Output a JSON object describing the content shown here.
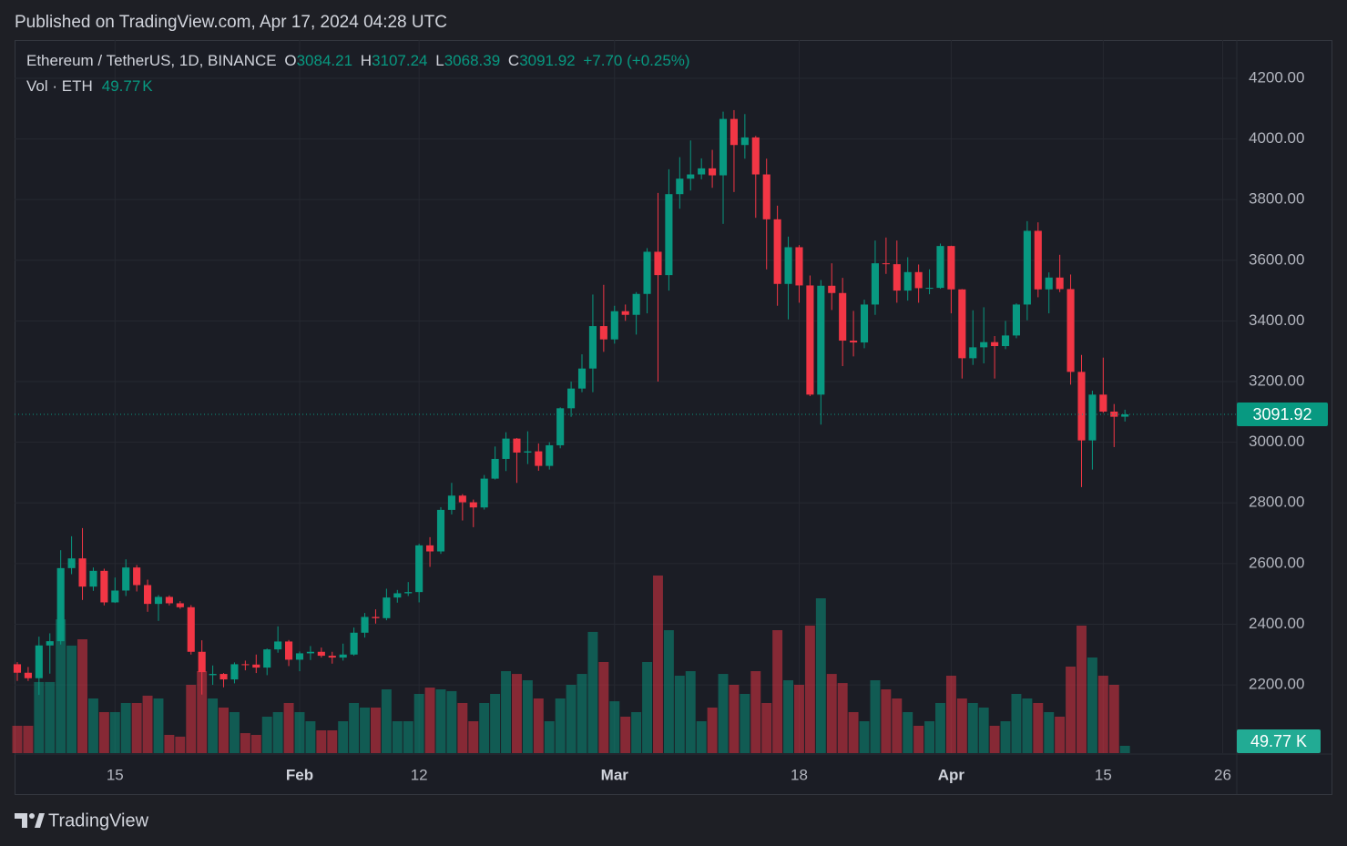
{
  "header": {
    "published": "Published on TradingView.com, Apr 17, 2024 04:28 UTC",
    "brand": "TradingView"
  },
  "chart_data": {
    "type": "candlestick",
    "title": "Ethereum / TetherUS, 1D, BINANCE",
    "ohlc_letters": [
      "O",
      "H",
      "L",
      "C"
    ],
    "change_label": "+7.70 (+0.25%)",
    "volume_title": "Vol · ETH",
    "volume_unit": "K",
    "up_color": "#089981",
    "down_color": "#f23645",
    "open": [
      2268,
      2240,
      2222,
      2330,
      2344,
      2585,
      2617,
      2524,
      2576,
      2472,
      2511,
      2587,
      2529,
      2467,
      2490,
      2469,
      2456,
      2309,
      2232,
      2236,
      2218,
      2268,
      2267,
      2257,
      2317,
      2343,
      2283,
      2304,
      2309,
      2296,
      2290,
      2300,
      2372,
      2424,
      2420,
      2488,
      2502,
      2506,
      2660,
      2640,
      2777,
      2824,
      2802,
      2785,
      2880,
      2945,
      3012,
      2966,
      2970,
      2922,
      2990,
      3112,
      3177,
      3243,
      3383,
      3339,
      3432,
      3420,
      3489,
      3628,
      3551,
      3818,
      3869,
      3883,
      3903,
      3880,
      4066,
      3980,
      4005,
      3883,
      3735,
      3522,
      3643,
      3517,
      3157,
      3516,
      3492,
      3335,
      3329,
      3454,
      3590,
      3587,
      3500,
      3561,
      3508,
      3509,
      3647,
      3504,
      3277,
      3313,
      3330,
      3317,
      3352,
      3454,
      3697,
      3504,
      3543,
      3505,
      3232,
      3006,
      3157,
      3101,
      3084.21
    ],
    "high": [
      2275,
      2259,
      2359,
      2370,
      2644,
      2690,
      2717,
      2587,
      2583,
      2554,
      2614,
      2595,
      2547,
      2496,
      2495,
      2476,
      2463,
      2347,
      2264,
      2239,
      2274,
      2280,
      2300,
      2320,
      2393,
      2348,
      2310,
      2328,
      2323,
      2309,
      2336,
      2389,
      2437,
      2449,
      2517,
      2513,
      2539,
      2665,
      2687,
      2786,
      2866,
      2829,
      2811,
      2892,
      2986,
      3033,
      3014,
      3036,
      2996,
      3000,
      3115,
      3200,
      3290,
      3487,
      3519,
      3450,
      3454,
      3495,
      3640,
      3822,
      3900,
      3940,
      3995,
      3936,
      3964,
      4090,
      4095,
      4082,
      4010,
      3935,
      3780,
      3678,
      3650,
      3550,
      3535,
      3590,
      3542,
      3433,
      3470,
      3665,
      3675,
      3665,
      3610,
      3586,
      3570,
      3655,
      3648,
      3505,
      3435,
      3445,
      3350,
      3400,
      3458,
      3729,
      3725,
      3560,
      3618,
      3553,
      3288,
      3170,
      3279,
      3126,
      3107.24
    ],
    "low": [
      2213,
      2213,
      2167,
      2237,
      2333,
      2565,
      2480,
      2510,
      2462,
      2470,
      2493,
      2508,
      2441,
      2411,
      2462,
      2451,
      2300,
      2168,
      2200,
      2192,
      2205,
      2248,
      2239,
      2232,
      2306,
      2262,
      2245,
      2282,
      2290,
      2270,
      2280,
      2296,
      2356,
      2402,
      2413,
      2471,
      2493,
      2472,
      2589,
      2632,
      2762,
      2742,
      2720,
      2778,
      2877,
      2905,
      2866,
      2928,
      2906,
      2910,
      2980,
      3084,
      3165,
      3165,
      3298,
      3325,
      3400,
      3355,
      3425,
      3200,
      3500,
      3770,
      3830,
      3867,
      3839,
      3720,
      3825,
      3935,
      3740,
      3570,
      3450,
      3405,
      3460,
      3152,
      3058,
      3436,
      3251,
      3283,
      3310,
      3420,
      3555,
      3460,
      3467,
      3460,
      3488,
      3506,
      3425,
      3210,
      3255,
      3260,
      3210,
      3307,
      3343,
      3402,
      3478,
      3425,
      3495,
      3190,
      2852,
      2910,
      3097,
      2984,
      3068.39
    ],
    "close": [
      2240,
      2222,
      2330,
      2344,
      2585,
      2617,
      2524,
      2576,
      2472,
      2511,
      2587,
      2529,
      2467,
      2490,
      2469,
      2456,
      2309,
      2242,
      2236,
      2218,
      2268,
      2267,
      2257,
      2317,
      2343,
      2283,
      2304,
      2309,
      2296,
      2290,
      2300,
      2372,
      2424,
      2420,
      2488,
      2502,
      2506,
      2660,
      2640,
      2777,
      2824,
      2802,
      2785,
      2880,
      2945,
      3012,
      2966,
      2970,
      2922,
      2990,
      3112,
      3177,
      3243,
      3383,
      3339,
      3432,
      3420,
      3489,
      3628,
      3551,
      3818,
      3869,
      3883,
      3903,
      3880,
      4066,
      3980,
      4005,
      3883,
      3735,
      3522,
      3643,
      3517,
      3157,
      3516,
      3492,
      3335,
      3329,
      3454,
      3590,
      3587,
      3500,
      3561,
      3508,
      3509,
      3647,
      3504,
      3277,
      3313,
      3330,
      3317,
      3352,
      3454,
      3697,
      3504,
      3543,
      3505,
      3232,
      3006,
      3157,
      3101,
      3084,
      3091.92
    ],
    "volume": [
      186,
      186,
      484,
      484,
      911,
      732,
      775,
      372,
      279,
      279,
      341,
      341,
      391,
      372,
      124,
      112,
      465,
      558,
      372,
      310,
      279,
      136,
      124,
      248,
      279,
      341,
      279,
      217,
      155,
      155,
      217,
      341,
      310,
      310,
      434,
      217,
      217,
      403,
      446,
      434,
      422,
      341,
      217,
      341,
      403,
      558,
      539,
      496,
      372,
      217,
      372,
      465,
      539,
      825,
      620,
      353,
      248,
      279,
      620,
      1209,
      837,
      527,
      558,
      217,
      310,
      539,
      465,
      403,
      558,
      341,
      837,
      496,
      465,
      868,
      1054,
      539,
      477,
      279,
      217,
      496,
      434,
      372,
      279,
      186,
      217,
      341,
      527,
      372,
      341,
      310,
      186,
      217,
      403,
      372,
      341,
      279,
      248,
      589,
      868,
      651,
      527,
      465,
      49.77
    ],
    "ylim": [
      1975,
      4326
    ],
    "yticks": [
      {
        "value": 2200,
        "label": "2200.00"
      },
      {
        "value": 2400,
        "label": "2400.00"
      },
      {
        "value": 2600,
        "label": "2600.00"
      },
      {
        "value": 2800,
        "label": "2800.00"
      },
      {
        "value": 3000,
        "label": "3000.00"
      },
      {
        "value": 3200,
        "label": "3200.00"
      },
      {
        "value": 3400,
        "label": "3400.00"
      },
      {
        "value": 3600,
        "label": "3600.00"
      },
      {
        "value": 3800,
        "label": "3800.00"
      },
      {
        "value": 4000,
        "label": "4000.00"
      },
      {
        "value": 4200,
        "label": "4200.00"
      }
    ],
    "xlim": [
      -0.25,
      112.3
    ],
    "xticks": [
      {
        "value": 9,
        "label": "15"
      },
      {
        "value": 26,
        "label": "Feb"
      },
      {
        "value": 37,
        "label": "12"
      },
      {
        "value": 55,
        "label": "Mar"
      },
      {
        "value": 72,
        "label": "18"
      },
      {
        "value": 86,
        "label": "Apr"
      },
      {
        "value": 100,
        "label": "15"
      },
      {
        "value": 111,
        "label": "26"
      }
    ],
    "grid": true
  }
}
